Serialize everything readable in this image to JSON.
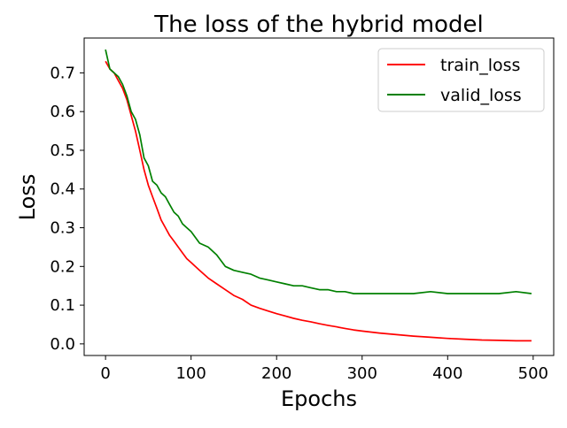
{
  "chart_data": {
    "type": "line",
    "title": "The loss of the hybrid model",
    "xlabel": "Epochs",
    "ylabel": "Loss",
    "xlim": [
      -25,
      524
    ],
    "ylim": [
      -0.03,
      0.79
    ],
    "xticks": [
      0,
      100,
      200,
      300,
      400,
      500
    ],
    "yticks": [
      0.0,
      0.1,
      0.2,
      0.3,
      0.4,
      0.5,
      0.6,
      0.7
    ],
    "grid": false,
    "legend": "top-right",
    "series": [
      {
        "name": "train_loss",
        "color": "#ff0000",
        "x": [
          0,
          5,
          10,
          15,
          20,
          25,
          30,
          35,
          40,
          45,
          50,
          55,
          60,
          65,
          70,
          75,
          80,
          85,
          90,
          95,
          100,
          110,
          120,
          130,
          140,
          150,
          160,
          170,
          180,
          190,
          200,
          210,
          220,
          230,
          240,
          250,
          260,
          270,
          280,
          290,
          300,
          320,
          340,
          360,
          380,
          400,
          420,
          440,
          460,
          480,
          498
        ],
        "y": [
          0.73,
          0.71,
          0.7,
          0.68,
          0.66,
          0.63,
          0.59,
          0.55,
          0.5,
          0.45,
          0.41,
          0.38,
          0.35,
          0.32,
          0.3,
          0.28,
          0.265,
          0.25,
          0.235,
          0.22,
          0.21,
          0.19,
          0.17,
          0.155,
          0.14,
          0.125,
          0.115,
          0.1,
          0.092,
          0.085,
          0.078,
          0.072,
          0.066,
          0.061,
          0.057,
          0.052,
          0.048,
          0.044,
          0.04,
          0.036,
          0.033,
          0.028,
          0.024,
          0.02,
          0.017,
          0.014,
          0.012,
          0.01,
          0.009,
          0.008,
          0.008
        ]
      },
      {
        "name": "valid_loss",
        "color": "#008000",
        "x": [
          0,
          5,
          10,
          15,
          20,
          25,
          30,
          35,
          40,
          45,
          50,
          55,
          60,
          65,
          70,
          75,
          80,
          85,
          90,
          95,
          100,
          110,
          120,
          130,
          140,
          150,
          160,
          170,
          180,
          190,
          200,
          210,
          220,
          230,
          240,
          250,
          260,
          270,
          280,
          290,
          300,
          320,
          340,
          360,
          380,
          400,
          420,
          440,
          460,
          480,
          498
        ],
        "y": [
          0.76,
          0.71,
          0.7,
          0.69,
          0.67,
          0.64,
          0.6,
          0.58,
          0.54,
          0.48,
          0.46,
          0.42,
          0.41,
          0.39,
          0.38,
          0.36,
          0.34,
          0.33,
          0.31,
          0.3,
          0.29,
          0.26,
          0.25,
          0.23,
          0.2,
          0.19,
          0.185,
          0.18,
          0.17,
          0.165,
          0.16,
          0.155,
          0.15,
          0.15,
          0.145,
          0.14,
          0.14,
          0.135,
          0.135,
          0.13,
          0.13,
          0.13,
          0.13,
          0.13,
          0.135,
          0.13,
          0.13,
          0.13,
          0.13,
          0.135,
          0.13
        ]
      }
    ]
  }
}
